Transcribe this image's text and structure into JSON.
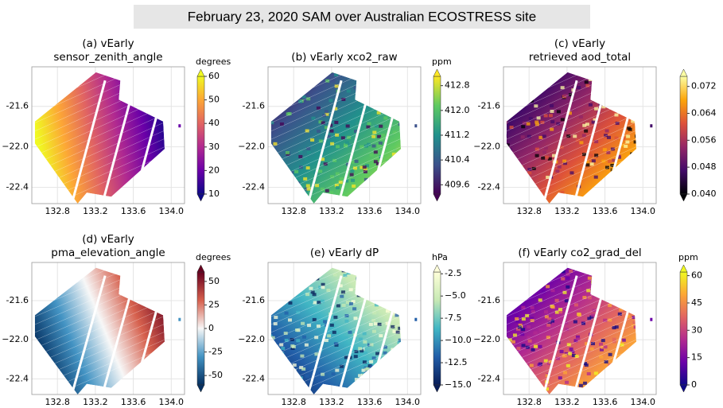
{
  "title": "February 23, 2020 SAM over Australian ECOSTRESS site",
  "chart_data": [
    {
      "type": "map",
      "title": [
        "(a) vEarly",
        "sensor_zenith_angle"
      ],
      "xlim": [
        132.53,
        134.14
      ],
      "ylim": [
        -22.56,
        -21.21
      ],
      "xticks": [
        132.8,
        133.2,
        133.6,
        {
          "value": 134,
          "label": "134.0"
        }
      ],
      "yticks": [
        -21.6,
        {
          "value": -22,
          "label": "−22.0"
        },
        -22.4
      ],
      "grid": true,
      "colorbar": {
        "label": "degrees",
        "lim": [
          10,
          60
        ],
        "ticks": [
          10,
          20,
          30,
          40,
          50,
          60
        ],
        "colormap": [
          "#0d0887",
          "#6a00a8",
          "#b12a90",
          "#e16462",
          "#fca636",
          "#f0f921"
        ]
      }
    },
    {
      "type": "map",
      "title": [
        "(b) vEarly xco2_raw"
      ],
      "xlim": [
        132.53,
        134.14
      ],
      "ylim": [
        -22.56,
        -21.21
      ],
      "xticks": [
        132.8,
        133.2,
        133.6,
        {
          "value": 134,
          "label": "134.0"
        }
      ],
      "yticks": [
        -21.6,
        {
          "value": -22,
          "label": "−22.0"
        },
        -22.4
      ],
      "grid": true,
      "colorbar": {
        "label": "ppm",
        "lim": [
          409.3,
          413.1
        ],
        "ticks": [
          409.6,
          410.4,
          411.2,
          {
            "value": 412,
            "label": "412.0"
          },
          412.8
        ],
        "colormap": [
          "#440154",
          "#3b528b",
          "#21918c",
          "#5ec962",
          "#fde725"
        ]
      }
    },
    {
      "type": "map",
      "title": [
        "(c) vEarly",
        "retrieved aod_total"
      ],
      "xlim": [
        132.53,
        134.14
      ],
      "ylim": [
        -22.56,
        -21.21
      ],
      "xticks": [
        132.8,
        133.2,
        133.6,
        {
          "value": 134,
          "label": "134.0"
        }
      ],
      "yticks": [
        -21.6,
        {
          "value": -22,
          "label": "−22.0"
        },
        -22.4
      ],
      "grid": true,
      "colorbar": {
        "lim": [
          0.04,
          0.075
        ],
        "ticks": [
          {
            "value": 0.04,
            "label": "0.040"
          },
          0.048,
          0.056,
          0.064,
          0.072
        ],
        "colormap": [
          "#000004",
          "#420a68",
          "#932667",
          "#dd513a",
          "#fca50a",
          "#fcffa4"
        ]
      }
    },
    {
      "type": "map",
      "title": [
        "(d) vEarly",
        "pma_elevation_angle"
      ],
      "xlim": [
        132.53,
        134.14
      ],
      "ylim": [
        -22.56,
        -21.21
      ],
      "xticks": [
        132.8,
        133.2,
        133.6,
        {
          "value": 134,
          "label": "134.0"
        }
      ],
      "yticks": [
        -21.6,
        {
          "value": -22,
          "label": "−22.0"
        },
        -22.4
      ],
      "grid": true,
      "colorbar": {
        "label": "degrees",
        "lim": [
          -60,
          60
        ],
        "ticks": [
          -50,
          -25,
          0,
          25,
          50
        ],
        "colormap": [
          "#053061",
          "#4393c3",
          "#f7f7f7",
          "#d6604d",
          "#67001f"
        ]
      }
    },
    {
      "type": "map",
      "title": [
        "(e) vEarly dP"
      ],
      "xlim": [
        132.53,
        134.14
      ],
      "ylim": [
        -22.56,
        -21.21
      ],
      "xticks": [
        132.8,
        133.2,
        133.6,
        {
          "value": 134,
          "label": "134.0"
        }
      ],
      "yticks": [
        -21.6,
        {
          "value": -22,
          "label": "−22.0"
        },
        -22.4
      ],
      "grid": true,
      "colorbar": {
        "label": "hPa",
        "lim": [
          -15,
          -2.3
        ],
        "ticks": [
          {
            "value": -15,
            "label": "−15.0"
          },
          -12.5,
          {
            "value": -10,
            "label": "−10.0"
          },
          -7.5,
          {
            "value": -5,
            "label": "−5.0"
          },
          -2.5
        ],
        "colormap": [
          "#081d58",
          "#225ea8",
          "#41b6c4",
          "#c7e9b4",
          "#ffffd9"
        ]
      }
    },
    {
      "type": "map",
      "title": [
        "(f) vEarly co2_grad_del"
      ],
      "xlim": [
        132.53,
        134.14
      ],
      "ylim": [
        -22.56,
        -21.21
      ],
      "xticks": [
        132.8,
        133.2,
        133.6,
        {
          "value": 134,
          "label": "134.0"
        }
      ],
      "yticks": [
        -21.6,
        {
          "value": -22,
          "label": "−22.0"
        },
        -22.4
      ],
      "grid": true,
      "colorbar": {
        "label": "ppm",
        "lim": [
          0,
          62
        ],
        "ticks": [
          0,
          15,
          30,
          45,
          60
        ],
        "colormap": [
          "#0d0887",
          "#6a00a8",
          "#b12a90",
          "#e16462",
          "#fca636",
          "#f0f921"
        ]
      }
    }
  ]
}
